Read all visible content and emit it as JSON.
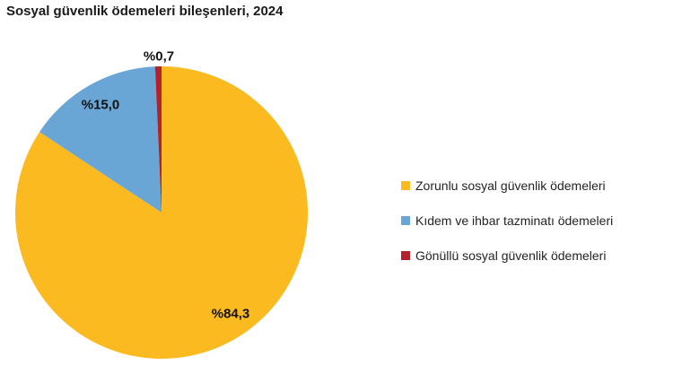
{
  "title": "Sosyal güvenlik ödemeleri bileşenleri, 2024",
  "colors": {
    "background": "#ffffff",
    "title_text": "#1a1a1a",
    "label_text": "#111111",
    "legend_text": "#222326",
    "slice_yellow": "#FBBA1F",
    "slice_blue": "#69A6D6",
    "slice_red": "#B5212A"
  },
  "chart_data": {
    "type": "pie",
    "title": "Sosyal güvenlik ödemeleri bileşenleri, 2024",
    "unit": "percent",
    "direction": "clockwise",
    "start_angle_deg": 0,
    "legend_position": "right",
    "slices": [
      {
        "label": "Zorunlu sosyal güvenlik ödemeleri",
        "value": 84.3,
        "display": "%84,3",
        "color": "#FBBA1F"
      },
      {
        "label": "Kıdem ve ihbar tazminatı ödemeleri",
        "value": 15.0,
        "display": "%15,0",
        "color": "#69A6D6"
      },
      {
        "label": "Gönüllü sosyal güvenlik ödemeleri",
        "value": 0.7,
        "display": "%0,7",
        "color": "#B5212A"
      }
    ]
  }
}
